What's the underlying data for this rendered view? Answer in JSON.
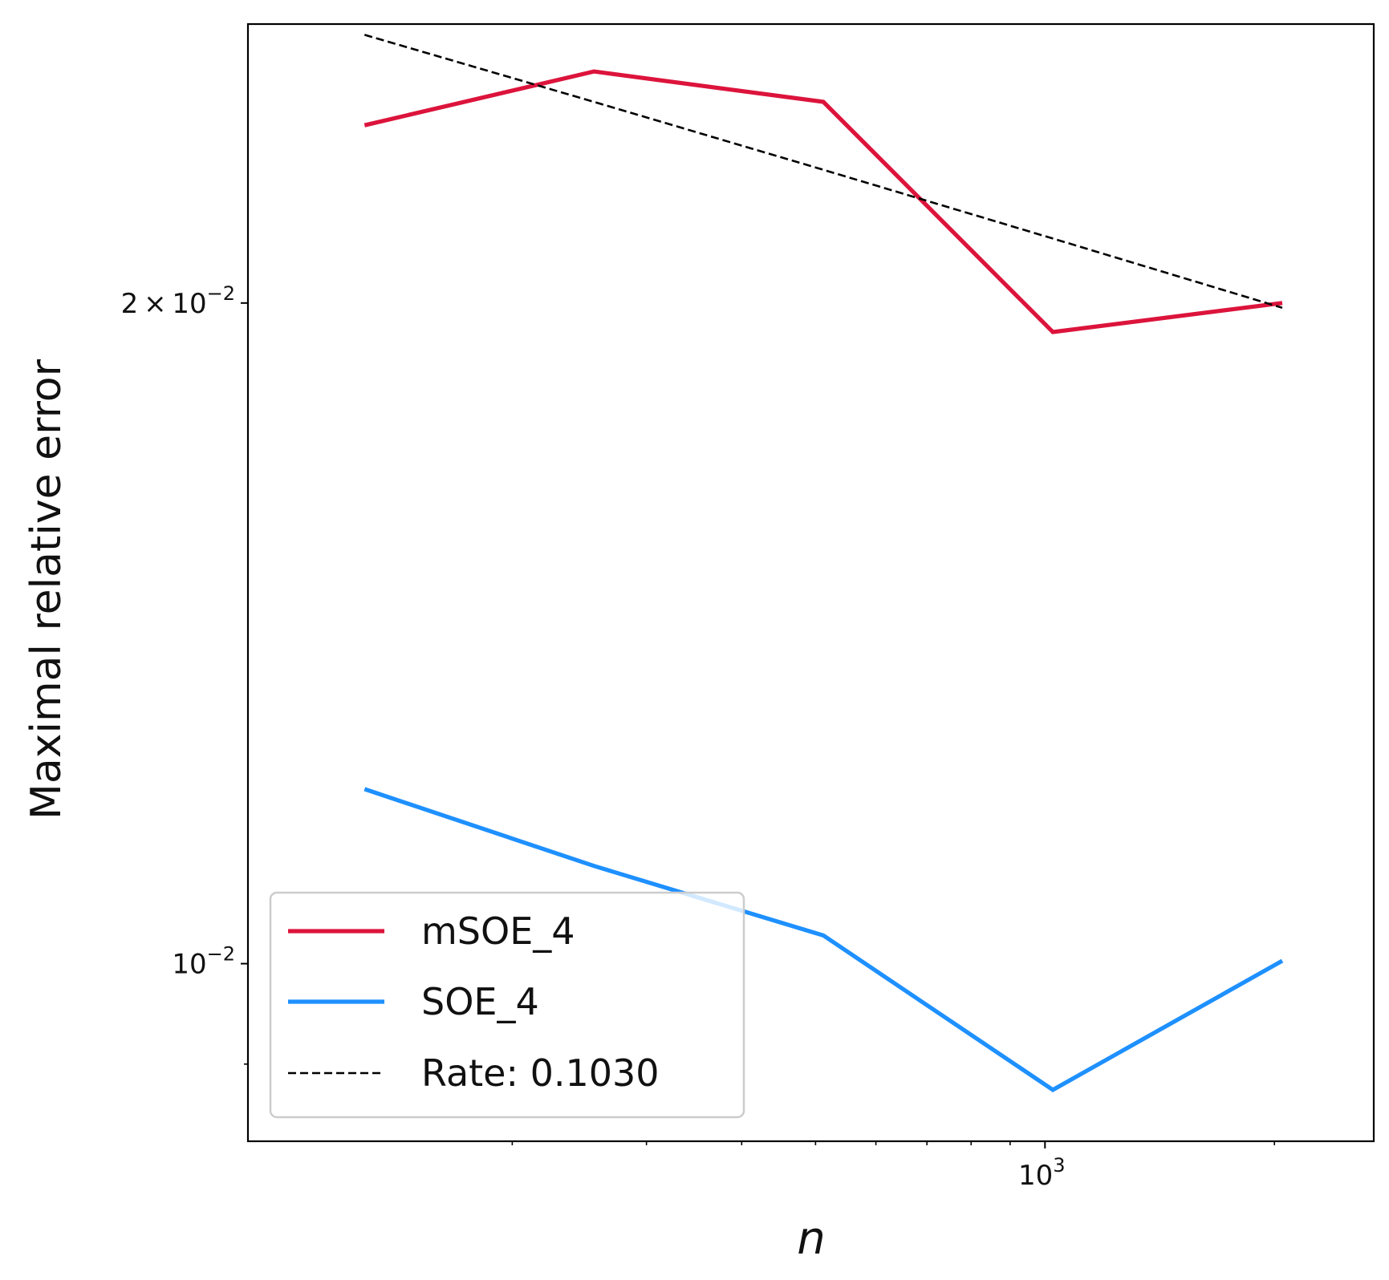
{
  "chart_data": {
    "type": "line",
    "xscale": "log",
    "yscale": "log",
    "xlabel": "n",
    "ylabel": "Maximal relative error",
    "x": [
      128,
      256,
      512,
      1024,
      2048
    ],
    "xlim": [
      90,
      2700
    ],
    "ylim": [
      0.0083,
      0.0268
    ],
    "series": [
      {
        "name": "mSOE_4",
        "color": "#dc143c",
        "style": "solid",
        "values": [
          0.0241,
          0.0255,
          0.0247,
          0.0194,
          0.02
        ]
      },
      {
        "name": "SOE_4",
        "color": "#1e90ff",
        "style": "solid",
        "values": [
          0.01201,
          0.01108,
          0.0103,
          0.00876,
          0.01003
        ]
      },
      {
        "name": "Rate: 0.1030",
        "color": "#000000",
        "style": "dashed",
        "values": [
          0.0265,
          0.0247,
          0.023,
          0.0214,
          0.0199
        ]
      }
    ],
    "yticks_major": [
      {
        "value": 0.01,
        "mantissa": "",
        "exp": "−2"
      },
      {
        "value": 0.02,
        "mantissa": "2",
        "exp": "−2"
      }
    ],
    "yticks_minor": [
      0.009
    ],
    "xticks_major": [
      {
        "value": 1000,
        "exp": "3"
      }
    ],
    "xticks_minor": [
      200,
      300,
      400,
      500,
      600,
      700,
      800,
      900,
      2000
    ],
    "legend": {
      "placement": "lower-left"
    }
  }
}
